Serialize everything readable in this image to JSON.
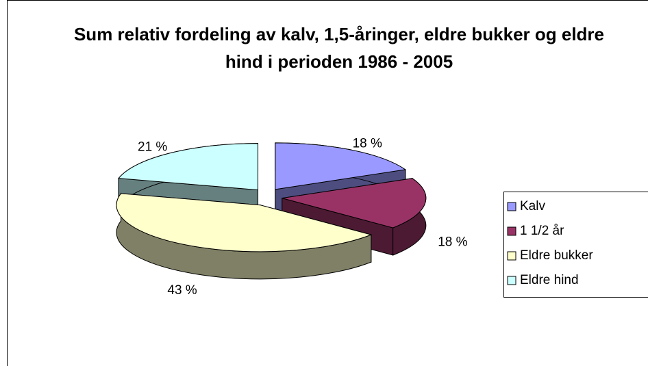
{
  "chart_data": {
    "type": "pie",
    "title": "Sum relativ fordeling av kalv, 1,5-åringer, eldre bukker og eldre hind i perioden 1986 - 2005",
    "categories": [
      "Kalv",
      "1 1/2 år",
      "Eldre bukker",
      "Eldre hind"
    ],
    "values": [
      18,
      18,
      43,
      21
    ],
    "value_labels": [
      "18 %",
      "18 %",
      "43 %",
      "21 %"
    ],
    "colors": [
      "#9999ff",
      "#993366",
      "#ffffcc",
      "#ccffff"
    ],
    "legend": "right"
  }
}
